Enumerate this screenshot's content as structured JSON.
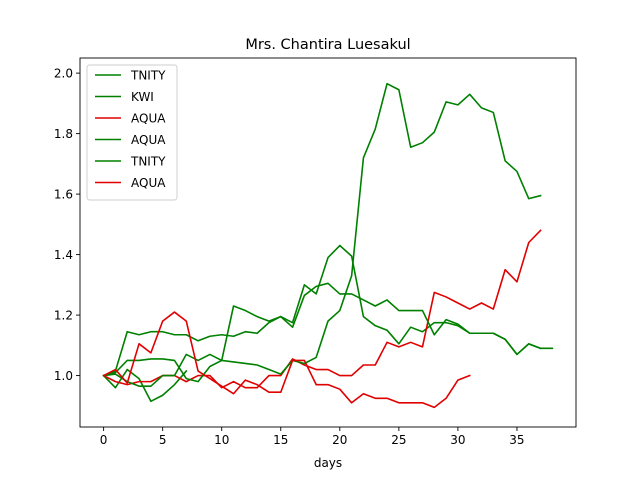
{
  "chart_data": {
    "type": "line",
    "title": "Mrs. Chantira Luesakul",
    "xlabel": "days",
    "ylabel": "",
    "xlim": [
      -2,
      40
    ],
    "ylim": [
      0.83,
      2.05
    ],
    "xticks": [
      0,
      5,
      10,
      15,
      20,
      25,
      30,
      35
    ],
    "yticks": [
      1.0,
      1.2,
      1.4,
      1.6,
      1.8,
      2.0
    ],
    "ytick_labels": [
      "1.0",
      "1.2",
      "1.4",
      "1.6",
      "1.8",
      "2.0"
    ],
    "grid": false,
    "legend_position": "top-left",
    "series": [
      {
        "name": "TNITY",
        "color": "#008000",
        "x": [
          0,
          1,
          2,
          3,
          4,
          5,
          6,
          7,
          8,
          9,
          10,
          11,
          12,
          13,
          14,
          15,
          16,
          17,
          18,
          19,
          20,
          21,
          22,
          23,
          24,
          25,
          26,
          27,
          28,
          29,
          30,
          31,
          32,
          33,
          34,
          35,
          36,
          37
        ],
        "y": [
          1.0,
          1.015,
          1.145,
          1.135,
          1.145,
          1.145,
          1.135,
          1.135,
          1.115,
          1.13,
          1.135,
          1.13,
          1.145,
          1.14,
          1.175,
          1.195,
          1.175,
          1.3,
          1.27,
          1.39,
          1.43,
          1.395,
          1.195,
          1.165,
          1.15,
          1.105,
          1.16,
          1.145,
          1.175,
          1.175,
          1.165,
          1.14,
          1.14,
          1.14,
          1.12,
          1.07,
          1.105,
          1.09
        ]
      },
      {
        "name": "KWI",
        "color": "#008000",
        "x": [
          0,
          1,
          2,
          3,
          4,
          5,
          6,
          7
        ],
        "y": [
          1.0,
          0.96,
          1.02,
          0.99,
          0.915,
          0.935,
          0.97,
          1.015
        ]
      },
      {
        "name": "AQUA",
        "color": "#e00000",
        "x": [
          0,
          1,
          2,
          3,
          4,
          5,
          6,
          7,
          8,
          9,
          10,
          11,
          12,
          13,
          14,
          15,
          16,
          17,
          18,
          19,
          20,
          21,
          22,
          23,
          24,
          25,
          26,
          27,
          28,
          29,
          30,
          31,
          32,
          33,
          34,
          35,
          36,
          37
        ],
        "y": [
          1.0,
          0.98,
          0.97,
          0.98,
          0.98,
          1.0,
          1.0,
          0.98,
          1.0,
          1.0,
          0.96,
          0.98,
          0.96,
          0.96,
          1.0,
          1.0,
          1.055,
          1.035,
          1.02,
          1.02,
          1.0,
          1.0,
          1.035,
          1.035,
          1.11,
          1.095,
          1.11,
          1.095,
          1.275,
          1.26,
          1.24,
          1.22,
          1.24,
          1.22,
          1.35,
          1.31,
          1.44,
          1.48
        ]
      },
      {
        "name": "AQUA",
        "color": "#008000",
        "x": [
          0,
          1,
          2,
          3,
          4,
          5,
          6,
          7,
          8,
          9,
          10,
          11,
          12,
          13,
          14,
          15,
          16,
          17,
          18,
          19,
          20,
          21,
          22,
          23,
          24,
          25,
          26,
          27,
          28,
          29,
          30,
          31,
          32,
          33,
          34,
          35,
          36,
          37
        ],
        "y": [
          1.0,
          1.01,
          1.05,
          1.05,
          1.055,
          1.055,
          1.05,
          0.99,
          0.98,
          1.03,
          1.05,
          1.045,
          1.04,
          1.035,
          1.02,
          1.005,
          1.05,
          1.04,
          1.06,
          1.18,
          1.215,
          1.33,
          1.72,
          1.815,
          1.965,
          1.945,
          1.755,
          1.77,
          1.805,
          1.905,
          1.895,
          1.93,
          1.885,
          1.87,
          1.71,
          1.675,
          1.585,
          1.595
        ]
      },
      {
        "name": "TNITY",
        "color": "#008000",
        "x": [
          0,
          1,
          2,
          3,
          4,
          5,
          6,
          7,
          8,
          9,
          10,
          11,
          12,
          13,
          14,
          15,
          16,
          17,
          18,
          19,
          20,
          21,
          22,
          23,
          24,
          25,
          26,
          27,
          28,
          29,
          30,
          31,
          32,
          33,
          34,
          35,
          36,
          37,
          38
        ],
        "y": [
          1.0,
          1.005,
          0.98,
          0.965,
          0.965,
          1.0,
          1.0,
          1.07,
          1.05,
          1.07,
          1.05,
          1.23,
          1.215,
          1.195,
          1.18,
          1.195,
          1.16,
          1.265,
          1.295,
          1.305,
          1.27,
          1.27,
          1.25,
          1.23,
          1.25,
          1.215,
          1.215,
          1.215,
          1.135,
          1.185,
          1.17,
          1.14,
          1.14,
          1.14,
          1.12,
          1.07,
          1.105,
          1.09,
          1.09
        ]
      },
      {
        "name": "AQUA",
        "color": "#e00000",
        "x": [
          0,
          1,
          2,
          3,
          4,
          5,
          6,
          7,
          8,
          9,
          10,
          11,
          12,
          13,
          14,
          15,
          16,
          17,
          18,
          19,
          20,
          21,
          22,
          23,
          24,
          25,
          26,
          27,
          28,
          29,
          30,
          31
        ],
        "y": [
          1.0,
          1.02,
          0.975,
          1.105,
          1.075,
          1.18,
          1.21,
          1.18,
          1.015,
          0.99,
          0.965,
          0.94,
          0.985,
          0.97,
          0.945,
          0.945,
          1.05,
          1.05,
          0.97,
          0.97,
          0.955,
          0.91,
          0.94,
          0.925,
          0.925,
          0.91,
          0.91,
          0.91,
          0.895,
          0.925,
          0.985,
          1.0
        ]
      }
    ]
  }
}
